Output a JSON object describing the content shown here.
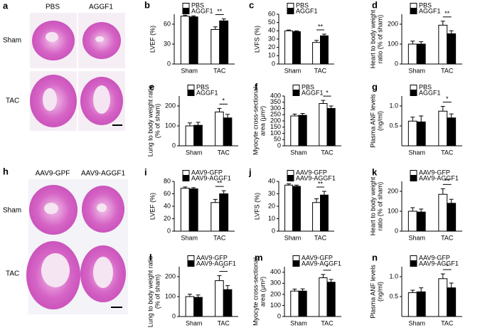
{
  "figure": {
    "panel_a": {
      "letter": "a",
      "columns": [
        "PBS",
        "AGGF1"
      ],
      "rows": [
        "Sham",
        "TAC"
      ]
    },
    "panel_h": {
      "letter": "h",
      "columns": [
        "AAV9-GPF",
        "AAV9-AGGF1"
      ],
      "rows": [
        "Sham",
        "TAC"
      ]
    }
  },
  "chart_data": [
    {
      "type": "bar",
      "label": "b",
      "y_label": [
        "LVEF (%)"
      ],
      "categories": [
        "Sham",
        "TAC"
      ],
      "series": [
        {
          "name": "PBS",
          "color": "#ffffff",
          "values": [
            72,
            52
          ],
          "errors": [
            1.5,
            4
          ]
        },
        {
          "name": "AGGF1",
          "color": "#000000",
          "values": [
            71,
            65
          ],
          "errors": [
            1.5,
            3
          ]
        }
      ],
      "ylim": [
        0,
        75
      ],
      "yticks": [
        0,
        30,
        60
      ],
      "annotation": "**"
    },
    {
      "type": "bar",
      "label": "c",
      "y_label": [
        "LVFS (%)"
      ],
      "categories": [
        "Sham",
        "TAC"
      ],
      "series": [
        {
          "name": "PBS",
          "color": "#ffffff",
          "values": [
            40,
            26
          ],
          "errors": [
            1,
            2.5
          ]
        },
        {
          "name": "AGGF1",
          "color": "#000000",
          "values": [
            39,
            34
          ],
          "errors": [
            1,
            2
          ]
        }
      ],
      "ylim": [
        0,
        60
      ],
      "yticks": [
        0,
        10,
        20,
        30,
        40,
        50,
        60
      ],
      "annotation": "**"
    },
    {
      "type": "bar",
      "label": "d",
      "y_label": [
        "Heart to body weight",
        "ratio (% of sham)"
      ],
      "categories": [
        "Sham",
        "TAC"
      ],
      "series": [
        {
          "name": "PBS",
          "color": "#ffffff",
          "values": [
            100,
            195
          ],
          "errors": [
            15,
            20
          ]
        },
        {
          "name": "AGGF1",
          "color": "#000000",
          "values": [
            100,
            152
          ],
          "errors": [
            12,
            15
          ]
        }
      ],
      "ylim": [
        0,
        250
      ],
      "yticks": [
        0,
        100,
        200
      ],
      "annotation": "**"
    },
    {
      "type": "bar",
      "label": "e",
      "y_label": [
        "Lung to body weight ratio",
        "(% of sham)"
      ],
      "categories": [
        "Sham",
        "TAC"
      ],
      "series": [
        {
          "name": "PBS",
          "color": "#ffffff",
          "values": [
            100,
            170
          ],
          "errors": [
            15,
            18
          ]
        },
        {
          "name": "AGGF1",
          "color": "#000000",
          "values": [
            103,
            140
          ],
          "errors": [
            15,
            18
          ]
        }
      ],
      "ylim": [
        0,
        250
      ],
      "yticks": [
        0,
        100,
        200
      ],
      "annotation": "*"
    },
    {
      "type": "bar",
      "label": "f",
      "y_label": [
        "Myocyte cross-sectional",
        "area (μm²)"
      ],
      "categories": [
        "Sham",
        "TAC"
      ],
      "series": [
        {
          "name": "PBS",
          "color": "#ffffff",
          "values": [
            240,
            340
          ],
          "errors": [
            15,
            25
          ]
        },
        {
          "name": "AGGF1",
          "color": "#000000",
          "values": [
            245,
            300
          ],
          "errors": [
            15,
            20
          ]
        }
      ],
      "ylim": [
        0,
        400
      ],
      "yticks": [
        0,
        50,
        100,
        150,
        200,
        250,
        300,
        350,
        400
      ],
      "annotation": "*"
    },
    {
      "type": "bar",
      "label": "g",
      "y_label": [
        "Plasma ANF levels",
        "(ng/ml)"
      ],
      "categories": [
        "Sham",
        "TAC"
      ],
      "series": [
        {
          "name": "PBS",
          "color": "#ffffff",
          "values": [
            0.62,
            0.87
          ],
          "errors": [
            0.1,
            0.12
          ]
        },
        {
          "name": "AGGF1",
          "color": "#000000",
          "values": [
            0.6,
            0.7
          ],
          "errors": [
            0.15,
            0.1
          ]
        }
      ],
      "ylim": [
        0,
        1.25
      ],
      "yticks": [
        {
          "value": 0.5,
          "label": "0.5"
        },
        {
          "value": 1,
          "label": "1.0"
        }
      ],
      "annotation": "*"
    },
    {
      "type": "bar",
      "label": "i",
      "y_label": [
        "LVEF (%)"
      ],
      "categories": [
        "Sham",
        "TAC"
      ],
      "series": [
        {
          "name": "AAV9-GFP",
          "color": "#ffffff",
          "values": [
            69,
            46
          ],
          "errors": [
            2,
            5
          ]
        },
        {
          "name": "AAV9-AGGF1",
          "color": "#000000",
          "values": [
            68,
            60
          ],
          "errors": [
            2,
            5
          ]
        }
      ],
      "ylim": [
        0,
        80
      ],
      "yticks": [
        0,
        20,
        40,
        60,
        80
      ],
      "annotation": "**"
    },
    {
      "type": "bar",
      "label": "j",
      "y_label": [
        "LVFS (%)"
      ],
      "categories": [
        "Sham",
        "TAC"
      ],
      "series": [
        {
          "name": "AAV9-GFP",
          "color": "#ffffff",
          "values": [
            37,
            23
          ],
          "errors": [
            1,
            3
          ]
        },
        {
          "name": "AAV9-AGGF1",
          "color": "#000000",
          "values": [
            36,
            29
          ],
          "errors": [
            1,
            3
          ]
        }
      ],
      "ylim": [
        0,
        40
      ],
      "yticks": [
        0,
        10,
        20,
        30,
        40
      ],
      "annotation": "**"
    },
    {
      "type": "bar",
      "label": "k",
      "y_label": [
        "Heart to body weight",
        "ratio (% of sham)"
      ],
      "categories": [
        "Sham",
        "TAC"
      ],
      "series": [
        {
          "name": "AAV9-GFP",
          "color": "#ffffff",
          "values": [
            100,
            185
          ],
          "errors": [
            18,
            28
          ]
        },
        {
          "name": "AAV9-AGGF1",
          "color": "#000000",
          "values": [
            96,
            140
          ],
          "errors": [
            15,
            20
          ]
        }
      ],
      "ylim": [
        0,
        250
      ],
      "yticks": [
        0,
        100,
        200
      ],
      "annotation": "**"
    },
    {
      "type": "bar",
      "label": "l",
      "y_label": [
        "Lung to body weight ratio",
        "(% of sham)"
      ],
      "categories": [
        "Sham",
        "TAC"
      ],
      "series": [
        {
          "name": "AAV9-GFP",
          "color": "#ffffff",
          "values": [
            100,
            180
          ],
          "errors": [
            12,
            25
          ]
        },
        {
          "name": "AAV9-AGGF1",
          "color": "#000000",
          "values": [
            96,
            135
          ],
          "errors": [
            12,
            20
          ]
        }
      ],
      "ylim": [
        0,
        250
      ],
      "yticks": [
        0,
        100,
        200
      ],
      "annotation": "*"
    },
    {
      "type": "bar",
      "label": "m",
      "y_label": [
        "Myocyte cross-sectional",
        "area (μm²)"
      ],
      "categories": [
        "Sham",
        "TAC"
      ],
      "series": [
        {
          "name": "AAV9-GFP",
          "color": "#ffffff",
          "values": [
            230,
            350
          ],
          "errors": [
            18,
            30
          ]
        },
        {
          "name": "AAV9-AGGF1",
          "color": "#000000",
          "values": [
            230,
            310
          ],
          "errors": [
            20,
            25
          ]
        }
      ],
      "ylim": [
        0,
        450
      ],
      "yticks": [
        0,
        100,
        200,
        300,
        400
      ],
      "annotation": "*"
    },
    {
      "type": "bar",
      "label": "n",
      "y_label": [
        "Plasma ANF levels",
        "(ng/ml)"
      ],
      "categories": [
        "Sham",
        "TAC"
      ],
      "series": [
        {
          "name": "AAV9-GFP",
          "color": "#ffffff",
          "values": [
            0.6,
            0.95
          ],
          "errors": [
            0.06,
            0.12
          ]
        },
        {
          "name": "AAV9-AGGF1",
          "color": "#000000",
          "values": [
            0.62,
            0.72
          ],
          "errors": [
            0.1,
            0.12
          ]
        }
      ],
      "ylim": [
        0,
        1.25
      ],
      "yticks": [
        {
          "value": 0.5,
          "label": "0.5"
        },
        {
          "value": 1,
          "label": "1.0"
        }
      ],
      "annotation": "*"
    }
  ]
}
